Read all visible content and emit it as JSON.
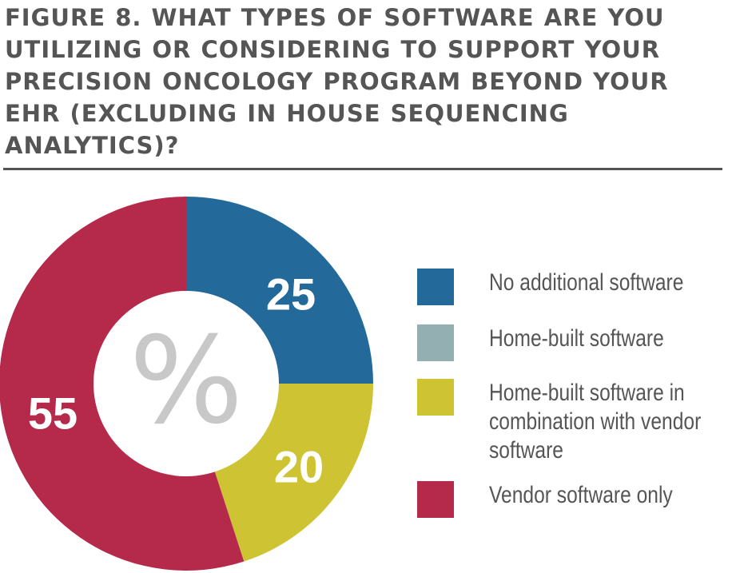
{
  "title": "FIGURE 8. WHAT TYPES OF SOFTWARE ARE YOU UTILIZING OR CONSIDERING TO SUPPORT YOUR PRECISION ONCOLOGY PROGRAM BEYOND YOUR EHR (EXCLUDING IN HOUSE SEQUENCING ANALYTICS)?",
  "center_symbol": "%",
  "colors": {
    "no_additional": "#236a9b",
    "home_built": "#93afb1",
    "home_vendor": "#cdc333",
    "vendor_only": "#b5294a",
    "title": "#555555"
  },
  "chart_data": {
    "type": "pie",
    "style": "donut",
    "unit": "%",
    "categories": [
      "No additional software",
      "Home-built software",
      "Home-built software in combination with vendor software",
      "Vendor software only"
    ],
    "values": [
      25,
      0,
      20,
      55
    ],
    "data_labels": [
      "25",
      "",
      "20",
      "55"
    ],
    "legend_position": "right"
  },
  "legend": [
    {
      "label": "No additional software",
      "color": "#236a9b"
    },
    {
      "label": "Home-built software",
      "color": "#93afb1"
    },
    {
      "label": "Home-built software in combination with vendor software",
      "color": "#cdc333"
    },
    {
      "label": "Vendor software only",
      "color": "#b5294a"
    }
  ]
}
